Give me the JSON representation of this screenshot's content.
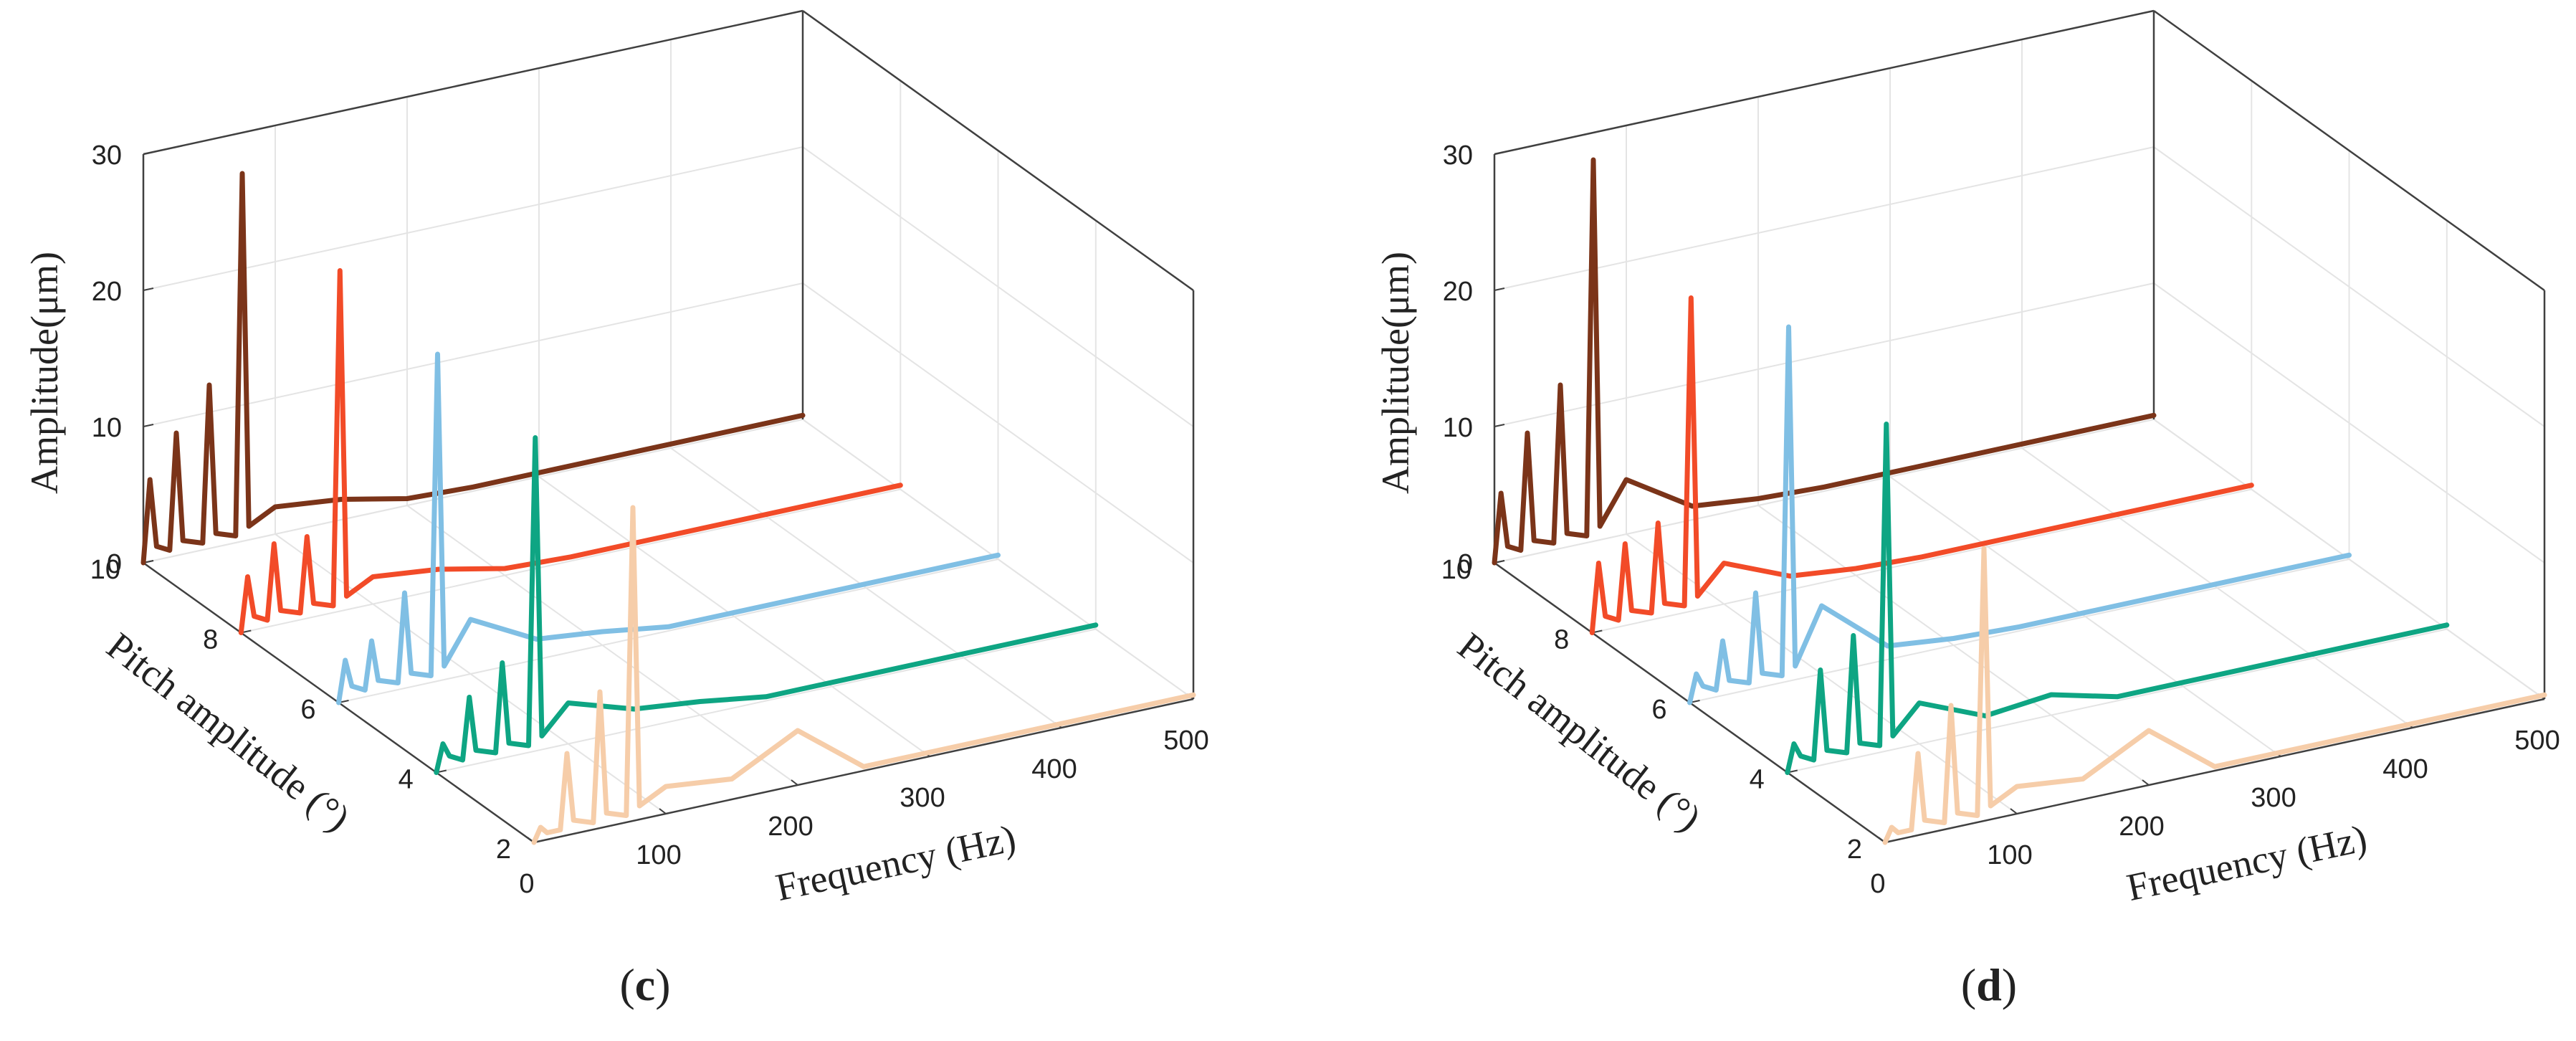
{
  "figure": {
    "panels": [
      "c",
      "d"
    ]
  },
  "chart_data": [
    {
      "type": "line",
      "panel_label": "c",
      "title": "",
      "xlabel": "Frequency (Hz)",
      "ylabel": "Pitch amplitude (°)",
      "zlabel": "Amplitude(μm)",
      "x_ticks": [
        "0",
        "100",
        "200",
        "300",
        "400",
        "500"
      ],
      "y_ticks": [
        "2",
        "4",
        "6",
        "8",
        "10"
      ],
      "z_ticks": [
        "0",
        "10",
        "20",
        "30"
      ],
      "xlim": [
        0,
        500
      ],
      "ylim": [
        2,
        10
      ],
      "zlim": [
        0,
        30
      ],
      "grid": true,
      "series": [
        {
          "name": "Pitch amplitude 10°",
          "pitch": 10,
          "color": "#7b3419",
          "frequency": [
            0,
            5,
            10,
            20,
            25,
            30,
            45,
            50,
            55,
            70,
            75,
            80,
            100,
            150,
            200,
            250,
            300,
            350,
            400,
            450,
            500
          ],
          "amplitude": [
            0,
            6,
            1,
            0.5,
            9,
            1,
            0.5,
            12,
            1,
            0.5,
            27,
            1,
            2,
            1.5,
            0.5,
            0.3,
            0.3,
            0.3,
            0.3,
            0.3,
            0.3
          ]
        },
        {
          "name": "Pitch amplitude 8°",
          "pitch": 8,
          "color": "#f24b28",
          "frequency": [
            0,
            5,
            10,
            20,
            25,
            30,
            45,
            50,
            55,
            70,
            75,
            80,
            100,
            150,
            200,
            250,
            300,
            350,
            400,
            450,
            500
          ],
          "amplitude": [
            0,
            4,
            1,
            0.5,
            6,
            1,
            0.5,
            6,
            1,
            0.5,
            25,
            1,
            2,
            1.5,
            0.5,
            0.3,
            0.3,
            0.3,
            0.3,
            0.3,
            0.3
          ]
        },
        {
          "name": "Pitch amplitude 6°",
          "pitch": 6,
          "color": "#80bfe4",
          "frequency": [
            0,
            5,
            10,
            20,
            25,
            30,
            45,
            50,
            55,
            70,
            75,
            80,
            100,
            150,
            200,
            250,
            300,
            350,
            400,
            450,
            500
          ],
          "amplitude": [
            0,
            3,
            1,
            0.5,
            4,
            1,
            0.5,
            7,
            1,
            0.5,
            24,
            1,
            4,
            1.5,
            1,
            0.3,
            0.3,
            0.3,
            0.3,
            0.3,
            0.3
          ]
        },
        {
          "name": "Pitch amplitude 4°",
          "pitch": 4,
          "color": "#0ea583",
          "frequency": [
            0,
            5,
            10,
            20,
            25,
            30,
            45,
            50,
            55,
            70,
            75,
            80,
            100,
            150,
            200,
            250,
            300,
            350,
            400,
            450,
            500
          ],
          "amplitude": [
            0,
            2,
            1,
            0.5,
            5,
            1,
            0.5,
            7,
            1,
            0.5,
            23,
            1,
            3,
            1.5,
            1,
            0.3,
            0.3,
            0.3,
            0.3,
            0.3,
            0.3
          ]
        },
        {
          "name": "Pitch amplitude 2°",
          "pitch": 2,
          "color": "#f6cda9",
          "frequency": [
            0,
            5,
            10,
            20,
            25,
            30,
            45,
            50,
            55,
            70,
            75,
            80,
            100,
            150,
            200,
            250,
            300,
            350,
            400,
            450,
            500
          ],
          "amplitude": [
            0,
            1,
            0.5,
            0.5,
            6,
            1,
            0.5,
            10,
            1,
            0.5,
            23,
            1,
            2,
            1.5,
            4,
            0.3,
            0.3,
            0.3,
            0.3,
            0.3,
            0.3
          ]
        }
      ]
    },
    {
      "type": "line",
      "panel_label": "d",
      "title": "",
      "xlabel": "Frequency (Hz)",
      "ylabel": "Pitch amplitude (°)",
      "zlabel": "Amplitude(μm)",
      "x_ticks": [
        "0",
        "100",
        "200",
        "300",
        "400",
        "500"
      ],
      "y_ticks": [
        "2",
        "4",
        "6",
        "8",
        "10"
      ],
      "z_ticks": [
        "0",
        "10",
        "20",
        "30"
      ],
      "xlim": [
        0,
        500
      ],
      "ylim": [
        2,
        10
      ],
      "zlim": [
        0,
        30
      ],
      "grid": true,
      "series": [
        {
          "name": "Pitch amplitude 10°",
          "pitch": 10,
          "color": "#7b3419",
          "frequency": [
            0,
            5,
            10,
            20,
            25,
            30,
            45,
            50,
            55,
            70,
            75,
            80,
            100,
            150,
            200,
            250,
            300,
            350,
            400,
            450,
            500
          ],
          "amplitude": [
            0,
            5,
            1,
            0.5,
            9,
            1,
            0.5,
            12,
            1,
            0.5,
            28,
            1,
            4,
            1,
            0.5,
            0.3,
            0.3,
            0.3,
            0.3,
            0.3,
            0.3
          ]
        },
        {
          "name": "Pitch amplitude 8°",
          "pitch": 8,
          "color": "#f24b28",
          "frequency": [
            0,
            5,
            10,
            20,
            25,
            30,
            45,
            50,
            55,
            70,
            75,
            80,
            100,
            150,
            200,
            250,
            300,
            350,
            400,
            450,
            500
          ],
          "amplitude": [
            0,
            5,
            1,
            0.5,
            6,
            1,
            0.5,
            7,
            1,
            0.5,
            23,
            1,
            3,
            1,
            0.5,
            0.3,
            0.3,
            0.3,
            0.3,
            0.3,
            0.3
          ]
        },
        {
          "name": "Pitch amplitude 6°",
          "pitch": 6,
          "color": "#80bfe4",
          "frequency": [
            0,
            5,
            10,
            20,
            25,
            30,
            45,
            50,
            55,
            70,
            75,
            80,
            100,
            150,
            200,
            250,
            300,
            350,
            400,
            450,
            500
          ],
          "amplitude": [
            0,
            2,
            1,
            0.5,
            4,
            1,
            0.5,
            7,
            1,
            0.5,
            26,
            1,
            5,
            1,
            0.5,
            0.3,
            0.3,
            0.3,
            0.3,
            0.3,
            0.3
          ]
        },
        {
          "name": "Pitch amplitude 4°",
          "pitch": 4,
          "color": "#0ea583",
          "frequency": [
            0,
            5,
            10,
            20,
            25,
            30,
            45,
            50,
            55,
            70,
            75,
            80,
            100,
            150,
            200,
            250,
            300,
            350,
            400,
            450,
            500
          ],
          "amplitude": [
            0,
            2,
            1,
            0.5,
            7,
            1,
            0.5,
            9,
            1,
            0.5,
            24,
            1,
            3,
            1,
            1.5,
            0.3,
            0.3,
            0.3,
            0.3,
            0.3,
            0.3
          ]
        },
        {
          "name": "Pitch amplitude 2°",
          "pitch": 2,
          "color": "#f6cda9",
          "frequency": [
            0,
            5,
            10,
            20,
            25,
            30,
            45,
            50,
            55,
            70,
            75,
            80,
            100,
            150,
            200,
            250,
            300,
            350,
            400,
            450,
            500
          ],
          "amplitude": [
            0,
            1,
            0.5,
            0.5,
            6,
            1,
            0.5,
            9,
            1,
            0.5,
            20,
            1,
            2,
            1.5,
            4,
            0.3,
            0.3,
            0.3,
            0.3,
            0.3,
            0.3
          ]
        }
      ]
    }
  ]
}
